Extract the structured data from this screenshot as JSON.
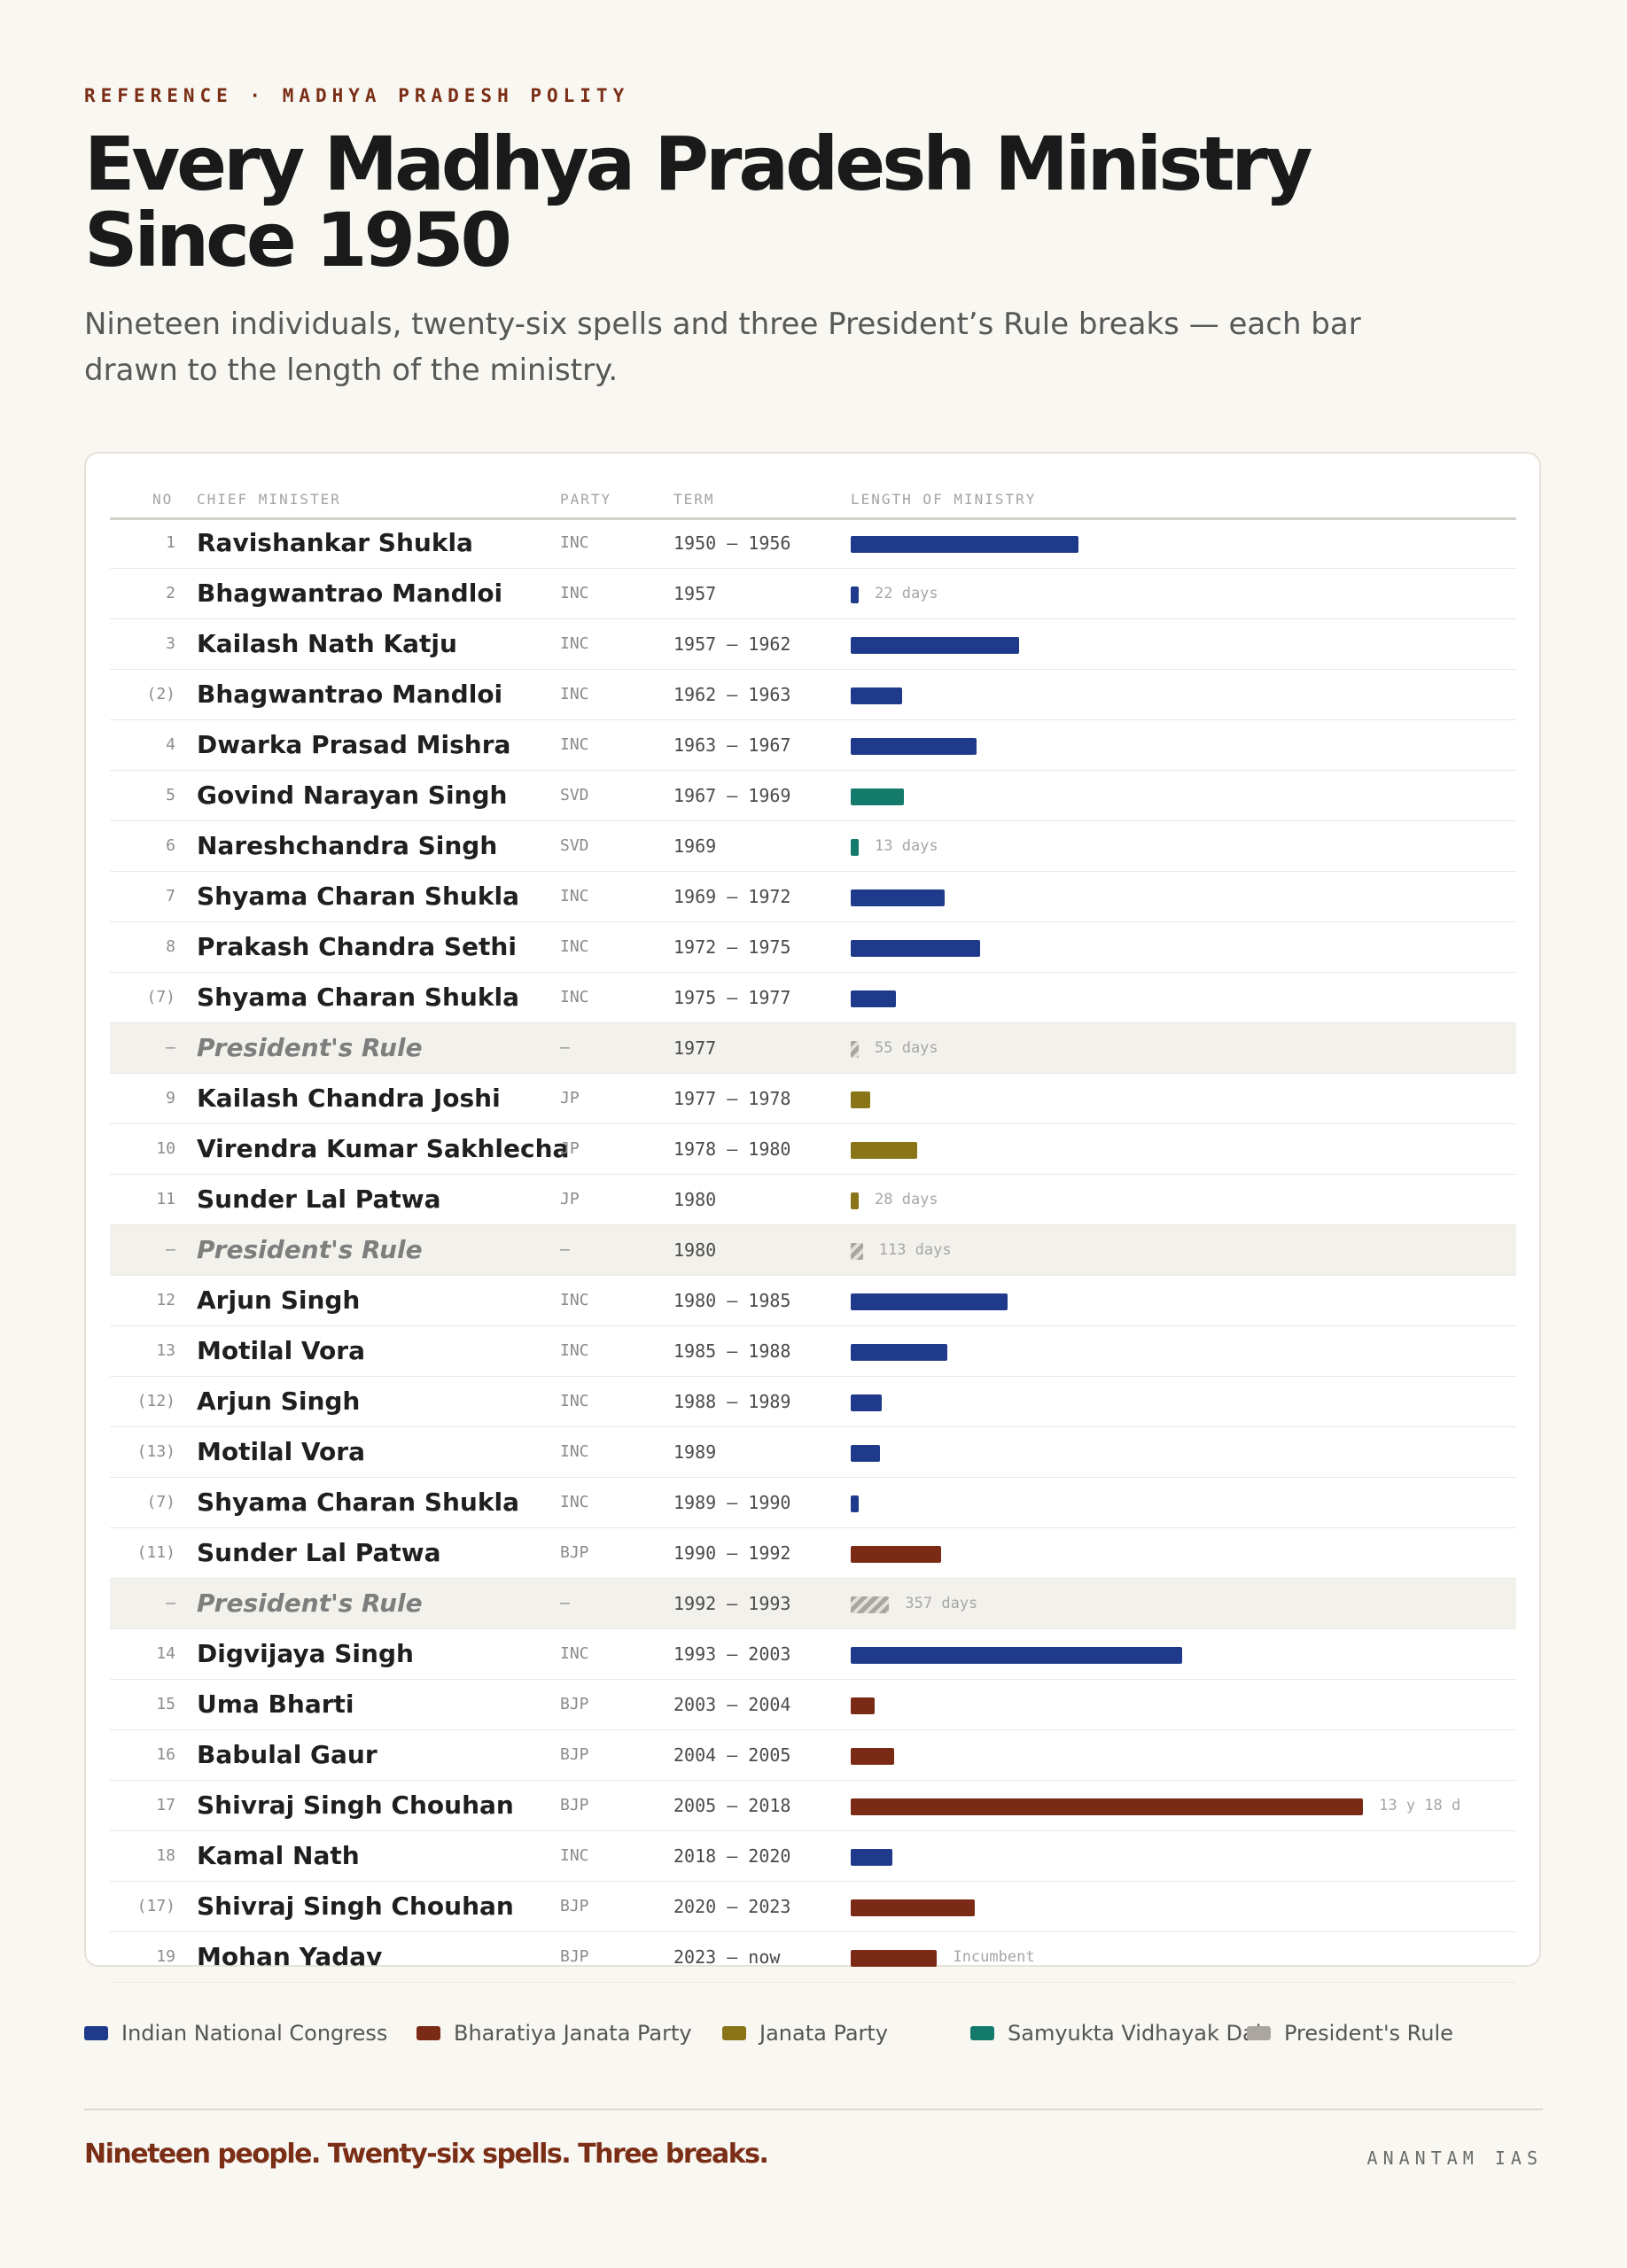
{
  "header": {
    "kicker": "REFERENCE · MADHYA PRADESH POLITY",
    "title": "Every Madhya Pradesh Ministry Since 1950",
    "subtitle": "Nineteen individuals, twenty-six spells and three President’s Rule breaks — each bar drawn to the length of the ministry."
  },
  "table": {
    "columns": {
      "no": "NO",
      "name": "CHIEF MINISTER",
      "party": "PARTY",
      "term": "TERM",
      "length": "LENGTH OF MINISTRY"
    }
  },
  "colors": {
    "INC": "#1f3a8a",
    "BJP": "#7b2a16",
    "JP": "#8a7418",
    "SVD": "#137a6c",
    "PR": "#aaa5a0"
  },
  "chart_data": {
    "type": "bar",
    "orientation": "horizontal",
    "value_unit": "years",
    "rows": [
      {
        "no": "1",
        "name": "Ravishankar Shukla",
        "party": "INC",
        "term": "1950 – 1956",
        "years": 5.8,
        "label": ""
      },
      {
        "no": "2",
        "name": "Bhagwantrao Mandloi",
        "party": "INC",
        "term": "1957",
        "years": 0.06,
        "label": "22 days"
      },
      {
        "no": "3",
        "name": "Kailash Nath Katju",
        "party": "INC",
        "term": "1957 – 1962",
        "years": 4.3,
        "label": ""
      },
      {
        "no": "(2)",
        "name": "Bhagwantrao Mandloi",
        "party": "INC",
        "term": "1962 – 1963",
        "years": 1.3,
        "label": ""
      },
      {
        "no": "4",
        "name": "Dwarka Prasad Mishra",
        "party": "INC",
        "term": "1963 – 1967",
        "years": 3.2,
        "label": ""
      },
      {
        "no": "5",
        "name": "Govind Narayan Singh",
        "party": "SVD",
        "term": "1967 – 1969",
        "years": 1.35,
        "label": ""
      },
      {
        "no": "6",
        "name": "Nareshchandra Singh",
        "party": "SVD",
        "term": "1969",
        "years": 0.04,
        "label": "13 days"
      },
      {
        "no": "7",
        "name": "Shyama Charan Shukla",
        "party": "INC",
        "term": "1969 – 1972",
        "years": 2.4,
        "label": ""
      },
      {
        "no": "8",
        "name": "Prakash Chandra Sethi",
        "party": "INC",
        "term": "1972 – 1975",
        "years": 3.3,
        "label": ""
      },
      {
        "no": "(7)",
        "name": "Shyama Charan Shukla",
        "party": "INC",
        "term": "1975 – 1977",
        "years": 1.15,
        "label": ""
      },
      {
        "no": "–",
        "name": "President's Rule",
        "party": "–",
        "term": "1977",
        "years": 0.15,
        "label": "55 days",
        "pr": true
      },
      {
        "no": "9",
        "name": "Kailash Chandra Joshi",
        "party": "JP",
        "term": "1977 – 1978",
        "years": 0.5,
        "label": ""
      },
      {
        "no": "10",
        "name": "Virendra Kumar Sakhlecha",
        "party": "JP",
        "term": "1978 – 1980",
        "years": 1.7,
        "label": ""
      },
      {
        "no": "11",
        "name": "Sunder Lal Patwa",
        "party": "JP",
        "term": "1980",
        "years": 0.08,
        "label": "28 days"
      },
      {
        "no": "–",
        "name": "President's Rule",
        "party": "–",
        "term": "1980",
        "years": 0.31,
        "label": "113 days",
        "pr": true
      },
      {
        "no": "12",
        "name": "Arjun Singh",
        "party": "INC",
        "term": "1980 – 1985",
        "years": 4.0,
        "label": ""
      },
      {
        "no": "13",
        "name": "Motilal Vora",
        "party": "INC",
        "term": "1985 – 1988",
        "years": 2.45,
        "label": ""
      },
      {
        "no": "(12)",
        "name": "Arjun Singh",
        "party": "INC",
        "term": "1988 – 1989",
        "years": 0.8,
        "label": ""
      },
      {
        "no": "(13)",
        "name": "Motilal Vora",
        "party": "INC",
        "term": "1989",
        "years": 0.75,
        "label": ""
      },
      {
        "no": "(7)",
        "name": "Shyama Charan Shukla",
        "party": "INC",
        "term": "1989 – 1990",
        "years": 0.2,
        "label": ""
      },
      {
        "no": "(11)",
        "name": "Sunder Lal Patwa",
        "party": "BJP",
        "term": "1990 – 1992",
        "years": 2.3,
        "label": ""
      },
      {
        "no": "–",
        "name": "President's Rule",
        "party": "–",
        "term": "1992 – 1993",
        "years": 0.98,
        "label": "357 days",
        "pr": true
      },
      {
        "no": "14",
        "name": "Digvijaya Singh",
        "party": "INC",
        "term": "1993 – 2003",
        "years": 8.45,
        "label": ""
      },
      {
        "no": "15",
        "name": "Uma Bharti",
        "party": "BJP",
        "term": "2003 – 2004",
        "years": 0.6,
        "label": ""
      },
      {
        "no": "16",
        "name": "Babulal Gaur",
        "party": "BJP",
        "term": "2004 – 2005",
        "years": 1.1,
        "label": ""
      },
      {
        "no": "17",
        "name": "Shivraj Singh Chouhan",
        "party": "BJP",
        "term": "2005 – 2018",
        "years": 13.05,
        "label": "13 y 18 d"
      },
      {
        "no": "18",
        "name": "Kamal Nath",
        "party": "INC",
        "term": "2018 – 2020",
        "years": 1.05,
        "label": ""
      },
      {
        "no": "(17)",
        "name": "Shivraj Singh Chouhan",
        "party": "BJP",
        "term": "2020 – 2023",
        "years": 3.15,
        "label": ""
      },
      {
        "no": "19",
        "name": "Mohan Yadav",
        "party": "BJP",
        "term": "2023 – now",
        "years": 2.2,
        "label": "Incumbent"
      }
    ]
  },
  "legend": [
    {
      "key": "INC",
      "label": "Indian National Congress"
    },
    {
      "key": "BJP",
      "label": "Bharatiya Janata Party"
    },
    {
      "key": "JP",
      "label": "Janata Party"
    },
    {
      "key": "SVD",
      "label": "Samyukta Vidhayak Dal"
    },
    {
      "key": "PR",
      "label": "President's Rule"
    }
  ],
  "footer": {
    "tagline": "Nineteen people. Twenty-six spells. Three breaks.",
    "brand": "ANANTAM IAS"
  }
}
